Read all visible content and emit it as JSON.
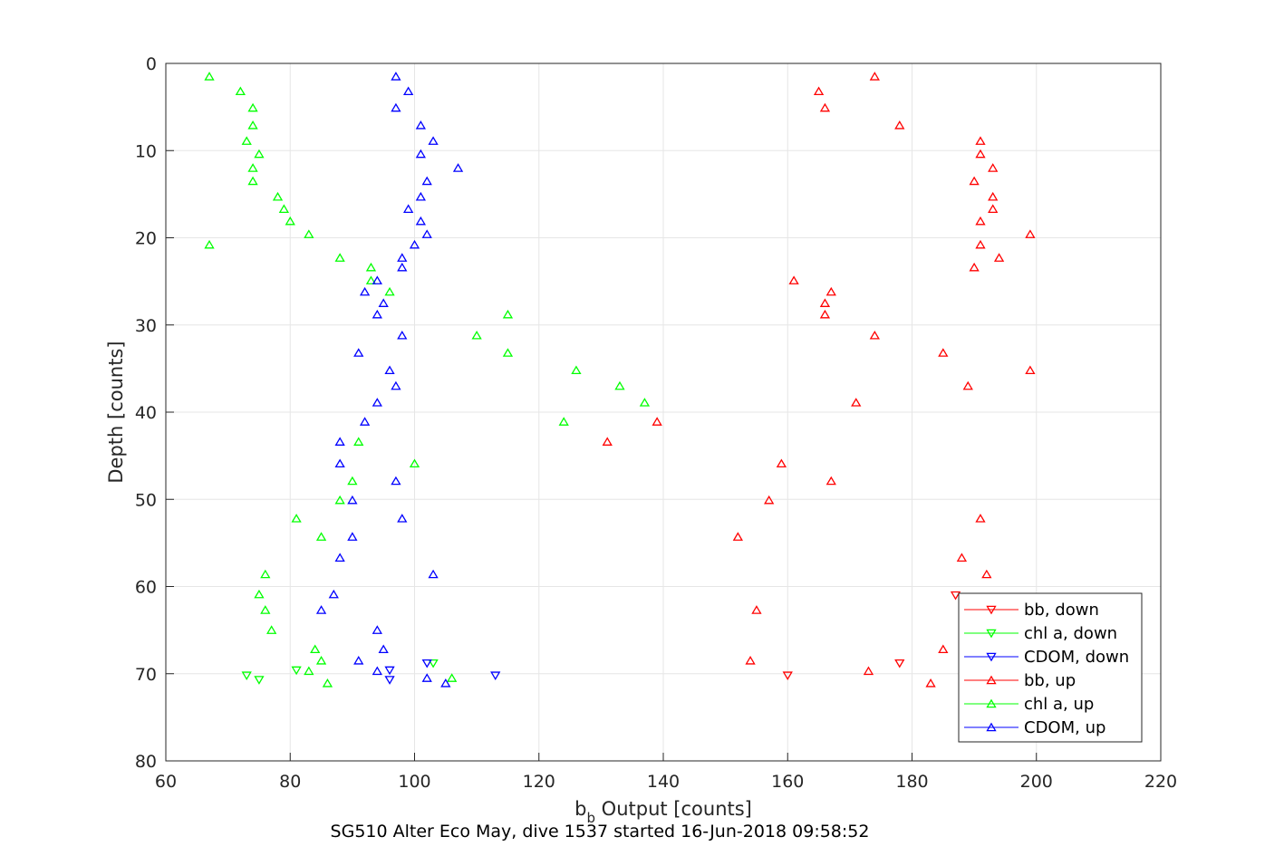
{
  "chart_data": {
    "type": "scatter",
    "xlabel_main": "b",
    "xlabel_sub": "b",
    "xlabel_rest": " Output [counts]",
    "ylabel": "Depth [counts]",
    "caption": "SG510 Alter Eco May, dive 1537 started 16-Jun-2018 09:58:52",
    "xlim": [
      60,
      220
    ],
    "ylim": [
      0,
      80
    ],
    "y_reversed": true,
    "grid": true,
    "legend_position": "bottom-right",
    "xticks": [
      60,
      80,
      100,
      120,
      140,
      160,
      180,
      200,
      220
    ],
    "yticks": [
      0,
      10,
      20,
      30,
      40,
      50,
      60,
      70,
      80
    ],
    "series": [
      {
        "name": "bb, down",
        "color": "#ff0000",
        "marker": "triangle-down",
        "points": [
          [
            160,
            70.2
          ],
          [
            178,
            68.8
          ],
          [
            187,
            61
          ]
        ]
      },
      {
        "name": "chl a, down",
        "color": "#00ff00",
        "marker": "triangle-down",
        "points": [
          [
            73,
            70.2
          ],
          [
            75,
            70.7
          ],
          [
            81,
            69.6
          ],
          [
            103,
            68.8
          ]
        ]
      },
      {
        "name": "CDOM, down",
        "color": "#0000ff",
        "marker": "triangle-down",
        "points": [
          [
            96,
            69.6
          ],
          [
            96,
            70.7
          ],
          [
            102,
            68.8
          ],
          [
            113,
            70.2
          ]
        ]
      },
      {
        "name": "bb, up",
        "color": "#ff0000",
        "marker": "triangle-up",
        "points": [
          [
            174,
            1.5
          ],
          [
            165,
            3.2
          ],
          [
            166,
            5.1
          ],
          [
            178,
            7.1
          ],
          [
            191,
            8.9
          ],
          [
            191,
            10.4
          ],
          [
            193,
            12
          ],
          [
            190,
            13.5
          ],
          [
            193,
            15.3
          ],
          [
            193,
            16.7
          ],
          [
            191,
            18.1
          ],
          [
            199,
            19.6
          ],
          [
            191,
            20.8
          ],
          [
            194,
            22.3
          ],
          [
            190,
            23.4
          ],
          [
            161,
            24.9
          ],
          [
            167,
            26.2
          ],
          [
            166,
            27.5
          ],
          [
            166,
            28.8
          ],
          [
            174,
            31.2
          ],
          [
            185,
            33.2
          ],
          [
            199,
            35.2
          ],
          [
            189,
            37
          ],
          [
            171,
            38.9
          ],
          [
            139,
            41.1
          ],
          [
            131,
            43.4
          ],
          [
            159,
            45.9
          ],
          [
            167,
            47.9
          ],
          [
            157,
            50.1
          ],
          [
            191,
            52.2
          ],
          [
            152,
            54.3
          ],
          [
            188,
            56.7
          ],
          [
            192,
            58.6
          ],
          [
            155,
            62.7
          ],
          [
            185,
            67.2
          ],
          [
            154,
            68.5
          ],
          [
            173,
            69.7
          ],
          [
            183,
            71.1
          ]
        ]
      },
      {
        "name": "chl a, up",
        "color": "#00ff00",
        "marker": "triangle-up",
        "points": [
          [
            67,
            1.5
          ],
          [
            72,
            3.2
          ],
          [
            74,
            5.1
          ],
          [
            74,
            7.1
          ],
          [
            73,
            8.9
          ],
          [
            75,
            10.4
          ],
          [
            74,
            12
          ],
          [
            74,
            13.5
          ],
          [
            78,
            15.3
          ],
          [
            79,
            16.7
          ],
          [
            80,
            18.1
          ],
          [
            83,
            19.6
          ],
          [
            67,
            20.8
          ],
          [
            88,
            22.3
          ],
          [
            93,
            23.4
          ],
          [
            93,
            24.9
          ],
          [
            96,
            26.2
          ],
          [
            115,
            28.8
          ],
          [
            110,
            31.2
          ],
          [
            115,
            33.2
          ],
          [
            126,
            35.2
          ],
          [
            133,
            37
          ],
          [
            137,
            38.9
          ],
          [
            124,
            41.1
          ],
          [
            91,
            43.4
          ],
          [
            100,
            45.9
          ],
          [
            90,
            47.9
          ],
          [
            88,
            50.1
          ],
          [
            81,
            52.2
          ],
          [
            85,
            54.3
          ],
          [
            76,
            58.6
          ],
          [
            75,
            60.9
          ],
          [
            76,
            62.7
          ],
          [
            77,
            65
          ],
          [
            84,
            67.2
          ],
          [
            85,
            68.5
          ],
          [
            83,
            69.7
          ],
          [
            86,
            71.1
          ],
          [
            106,
            70.5
          ]
        ]
      },
      {
        "name": "CDOM, up",
        "color": "#0000ff",
        "marker": "triangle-up",
        "points": [
          [
            97,
            1.5
          ],
          [
            99,
            3.2
          ],
          [
            97,
            5.1
          ],
          [
            101,
            7.1
          ],
          [
            103,
            8.9
          ],
          [
            101,
            10.4
          ],
          [
            107,
            12
          ],
          [
            102,
            13.5
          ],
          [
            101,
            15.3
          ],
          [
            99,
            16.7
          ],
          [
            101,
            18.1
          ],
          [
            102,
            19.6
          ],
          [
            100,
            20.8
          ],
          [
            98,
            22.3
          ],
          [
            98,
            23.4
          ],
          [
            94,
            24.9
          ],
          [
            92,
            26.2
          ],
          [
            95,
            27.5
          ],
          [
            94,
            28.8
          ],
          [
            98,
            31.2
          ],
          [
            91,
            33.2
          ],
          [
            96,
            35.2
          ],
          [
            97,
            37
          ],
          [
            94,
            38.9
          ],
          [
            92,
            41.1
          ],
          [
            88,
            43.4
          ],
          [
            88,
            45.9
          ],
          [
            97,
            47.9
          ],
          [
            90,
            50.1
          ],
          [
            98,
            52.2
          ],
          [
            90,
            54.3
          ],
          [
            88,
            56.7
          ],
          [
            103,
            58.6
          ],
          [
            87,
            60.9
          ],
          [
            85,
            62.7
          ],
          [
            94,
            65
          ],
          [
            95,
            67.2
          ],
          [
            91,
            68.5
          ],
          [
            94,
            69.7
          ],
          [
            102,
            70.5
          ],
          [
            105,
            71.1
          ]
        ]
      }
    ]
  }
}
